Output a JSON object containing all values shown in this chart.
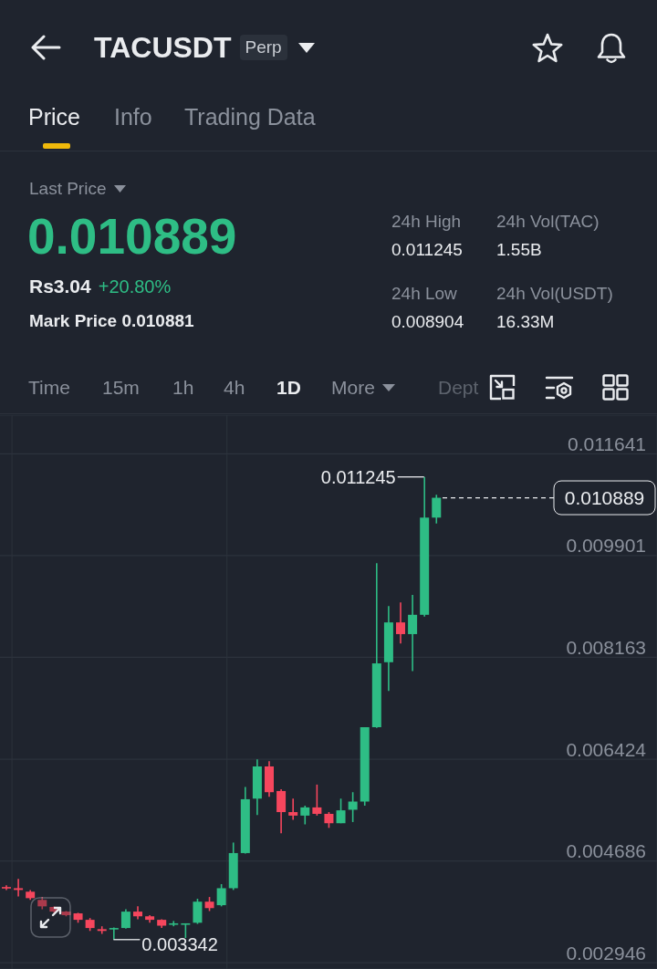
{
  "chart_data": {
    "type": "candlestick",
    "title": "TACUSDT",
    "categories": [
      null,
      null,
      null,
      null,
      null,
      null,
      null,
      null,
      null,
      null,
      null,
      null,
      null,
      null,
      null,
      null,
      null,
      null,
      null,
      null,
      null,
      null,
      null,
      null,
      null,
      null,
      null,
      null,
      null,
      null,
      null,
      null,
      null,
      null,
      null,
      null,
      null,
      null,
      null,
      null,
      null,
      null,
      null,
      null,
      null,
      null,
      null,
      null,
      null,
      null,
      null,
      null,
      null,
      null,
      null
    ],
    "ohlc": [
      [
        0.00424,
        0.00427,
        0.00419,
        0.00422
      ],
      [
        0.00422,
        0.00438,
        0.00408,
        0.00419
      ],
      [
        0.00416,
        0.00419,
        0.00402,
        0.00405
      ],
      [
        0.00402,
        0.00407,
        0.00386,
        0.00391
      ],
      [
        0.0039,
        0.00391,
        0.0038,
        0.00382
      ],
      [
        0.00382,
        0.00383,
        0.00374,
        0.00376
      ],
      [
        0.00379,
        0.0038,
        0.00363,
        0.00368
      ],
      [
        0.00368,
        0.00371,
        0.00349,
        0.00354
      ],
      [
        0.00352,
        0.00357,
        0.00344,
        0.00349
      ],
      [
        0.00352,
        0.00355,
        0.003342,
        0.00354
      ],
      [
        0.00354,
        0.00386,
        0.00353,
        0.00382
      ],
      [
        0.00382,
        0.00391,
        0.00369,
        0.00374
      ],
      [
        0.00374,
        0.00376,
        0.00363,
        0.00368
      ],
      [
        0.00368,
        0.00369,
        0.00354,
        0.00358
      ],
      [
        0.00361,
        0.00366,
        0.00357,
        0.00362
      ],
      [
        0.0036,
        0.00362,
        0.00337,
        0.00362
      ],
      [
        0.00363,
        0.00404,
        0.00361,
        0.00399
      ],
      [
        0.00399,
        0.00407,
        0.00383,
        0.00388
      ],
      [
        0.00393,
        0.00429,
        0.00391,
        0.00422
      ],
      [
        0.00422,
        0.005,
        0.00419,
        0.00482
      ],
      [
        0.00482,
        0.00595,
        0.00481,
        0.00574
      ],
      [
        0.00575,
        0.00642,
        0.00547,
        0.0063
      ],
      [
        0.0063,
        0.00639,
        0.00578,
        0.00586
      ],
      [
        0.00588,
        0.00591,
        0.00516,
        0.00552
      ],
      [
        0.00552,
        0.00575,
        0.00539,
        0.00546
      ],
      [
        0.00546,
        0.00563,
        0.00531,
        0.0056
      ],
      [
        0.0056,
        0.00599,
        0.00546,
        0.00549
      ],
      [
        0.00549,
        0.00552,
        0.00525,
        0.00533
      ],
      [
        0.00533,
        0.00575,
        0.00533,
        0.00555
      ],
      [
        0.00556,
        0.00586,
        0.00535,
        0.0057
      ],
      [
        0.0057,
        0.00697,
        0.00563,
        0.00697
      ],
      [
        0.00697,
        0.00977,
        0.00696,
        0.00806
      ],
      [
        0.00808,
        0.00904,
        0.00759,
        0.00876
      ],
      [
        0.00876,
        0.0091,
        0.0084,
        0.00856
      ],
      [
        0.00856,
        0.00923,
        0.00793,
        0.00889
      ],
      [
        0.00889,
        0.011245,
        0.00886,
        0.01055
      ],
      [
        0.01055,
        0.01094,
        0.01045,
        0.010889
      ],
      null,
      null,
      null,
      null,
      null,
      null,
      null,
      null,
      null,
      null,
      null,
      null,
      null,
      null,
      null,
      null,
      null,
      null
    ],
    "colors": [
      "#f6465d",
      "#f6465d",
      "#f6465d",
      "#f6465d",
      "#f6465d",
      "#f6465d",
      "#f6465d",
      "#f6465d",
      "#f6465d",
      "#2ebd85",
      "#2ebd85",
      "#f6465d",
      "#f6465d",
      "#f6465d",
      "#2ebd85",
      "#2ebd85",
      "#2ebd85",
      "#f6465d",
      "#2ebd85",
      "#2ebd85",
      "#2ebd85",
      "#2ebd85",
      "#f6465d",
      "#f6465d",
      "#f6465d",
      "#2ebd85",
      "#f6465d",
      "#f6465d",
      "#2ebd85",
      "#2ebd85",
      "#2ebd85",
      "#2ebd85",
      "#2ebd85",
      "#f6465d",
      "#2ebd85",
      "#2ebd85",
      "#2ebd85",
      null,
      null,
      null,
      null,
      null,
      null,
      null,
      null,
      null,
      null,
      null,
      null,
      null,
      null,
      null,
      null,
      null,
      null
    ],
    "ylim": [
      0.00284,
      0.0123
    ],
    "yticks": [
      0.002946,
      0.004686,
      0.006424,
      0.008163,
      0.009901,
      0.011641
    ],
    "grid": "y",
    "tick_labels": "y",
    "ref_lines": [
      {
        "axis": "y",
        "value": 0.010889,
        "label": "0.010889",
        "color": "#eaecef",
        "line_style": "dashed"
      }
    ],
    "annotations": [
      "Perp",
      "Price",
      "Info",
      "Trading Data",
      "Last Price",
      "0.010889",
      "Rs3.04",
      "+20.80%",
      "Mark Price 0.010881",
      "24h High",
      "0.011245",
      "24h Vol(TAC)",
      "1.55B",
      "24h Low",
      "0.008904",
      "24h Vol(USDT)",
      "16.33M",
      "Time",
      "15m",
      "1h",
      "4h",
      "1D",
      "More",
      "Dept",
      "0.011245",
      "0.003342"
    ]
  }
}
